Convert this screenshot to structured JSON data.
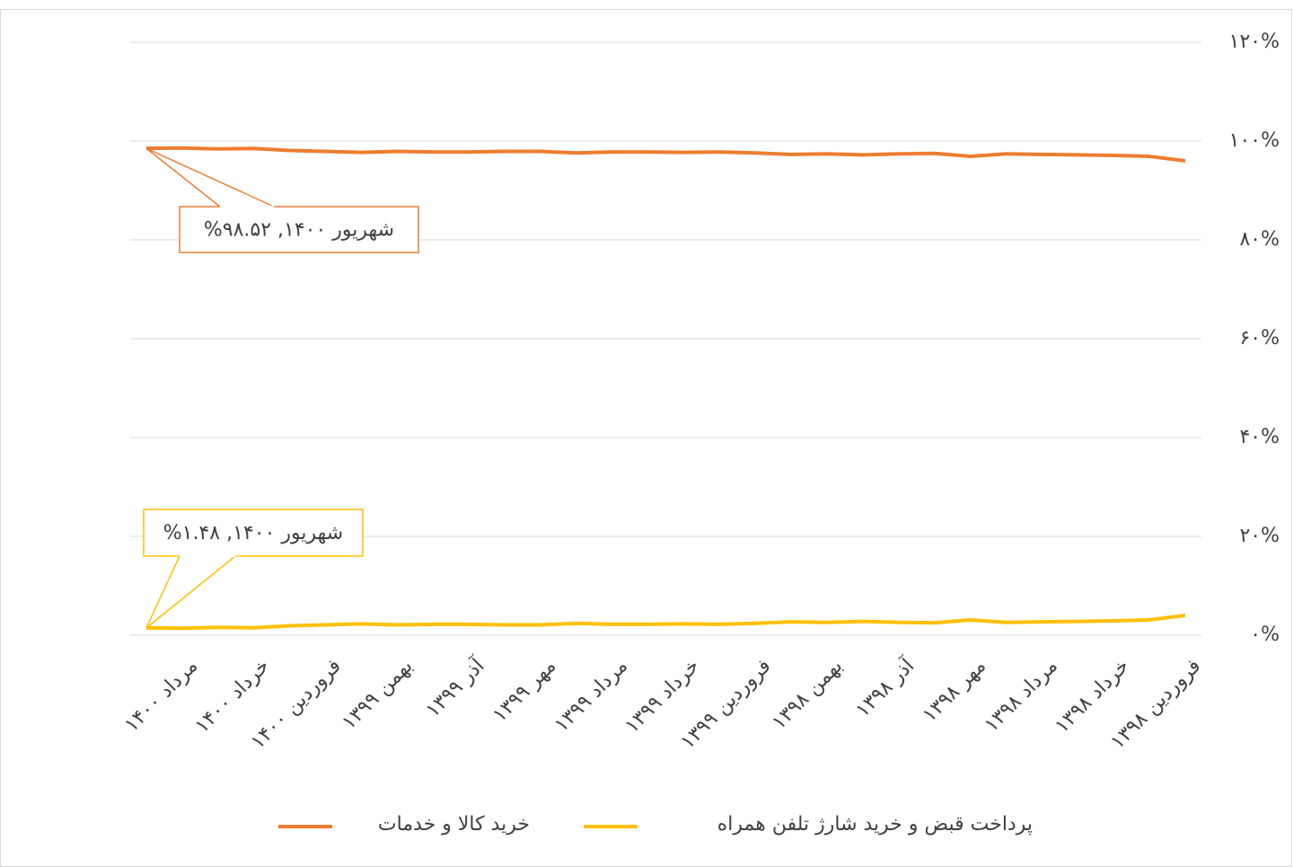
{
  "chart_data": {
    "type": "line",
    "categories": [
      null,
      "مرداد ۱۴۰۰",
      null,
      "خرداد ۱۴۰۰",
      null,
      "فروردین ۱۴۰۰",
      null,
      "بهمن ۱۳۹۹",
      null,
      "آذر ۱۳۹۹",
      null,
      "مهر ۱۳۹۹",
      null,
      "مرداد ۱۳۹۹",
      null,
      "خرداد ۱۳۹۹",
      null,
      "فروردین ۱۳۹۹",
      null,
      "بهمن ۱۳۹۸",
      null,
      "آذر ۱۳۹۸",
      null,
      "مهر ۱۳۹۸",
      null,
      "مرداد ۱۳۹۸",
      null,
      "خرداد ۱۳۹۸",
      null,
      "فروردین ۱۳۹۸"
    ],
    "series": [
      {
        "name": "خرید کالا و خدمات",
        "color": "#ed7d31",
        "annotation": "شهریور ۱۴۰۰, ۹۸.۵۲%",
        "values": [
          98.52,
          98.6,
          98.4,
          98.5,
          98.1,
          97.9,
          97.7,
          97.9,
          97.8,
          97.8,
          97.9,
          97.9,
          97.6,
          97.8,
          97.8,
          97.7,
          97.8,
          97.6,
          97.3,
          97.4,
          97.2,
          97.4,
          97.5,
          96.9,
          97.4,
          97.3,
          97.2,
          97.1,
          96.9,
          96.0
        ]
      },
      {
        "name": "پرداخت قبض و خرید شارژ تلفن همراه",
        "color": "#ffc000",
        "annotation": "شهریور ۱۴۰۰, ۱.۴۸%",
        "values": [
          1.48,
          1.4,
          1.6,
          1.5,
          1.9,
          2.1,
          2.3,
          2.1,
          2.2,
          2.2,
          2.1,
          2.1,
          2.4,
          2.2,
          2.2,
          2.3,
          2.2,
          2.4,
          2.7,
          2.6,
          2.8,
          2.6,
          2.5,
          3.1,
          2.6,
          2.7,
          2.8,
          2.9,
          3.1,
          4.0
        ]
      }
    ],
    "ylim": [
      0,
      120
    ],
    "yticks": [
      {
        "value": 0,
        "label": "۰%"
      },
      {
        "value": 20,
        "label": "۲۰%"
      },
      {
        "value": 40,
        "label": "۴۰%"
      },
      {
        "value": 60,
        "label": "۶۰%"
      },
      {
        "value": 80,
        "label": "۸۰%"
      },
      {
        "value": 100,
        "label": "۱۰۰%"
      },
      {
        "value": 120,
        "label": "۱۲۰%"
      }
    ],
    "grid": true,
    "legend": "bottom"
  }
}
